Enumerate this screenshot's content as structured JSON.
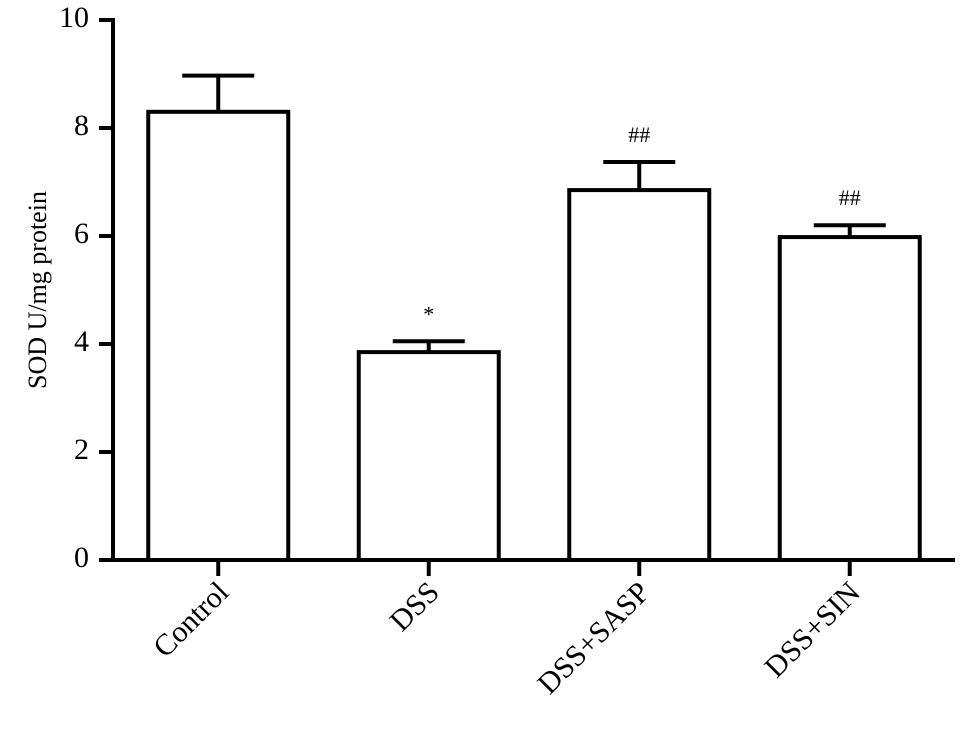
{
  "chart_data": {
    "type": "bar",
    "title": "",
    "xlabel": "",
    "ylabel": "SOD U/mg protein",
    "ylim": [
      0,
      10
    ],
    "yticks": [
      0,
      2,
      4,
      6,
      8,
      10
    ],
    "grid": false,
    "categories": [
      "Control",
      "DSS",
      "DSS+SASP",
      "DSS+SIN"
    ],
    "values": [
      8.3,
      3.85,
      6.85,
      5.98
    ],
    "errors": [
      0.67,
      0.2,
      0.52,
      0.22
    ],
    "annotations": [
      "",
      "*",
      "##",
      "##"
    ],
    "colors": {
      "bar_fill": "#ffffff",
      "stroke": "#000000"
    }
  }
}
